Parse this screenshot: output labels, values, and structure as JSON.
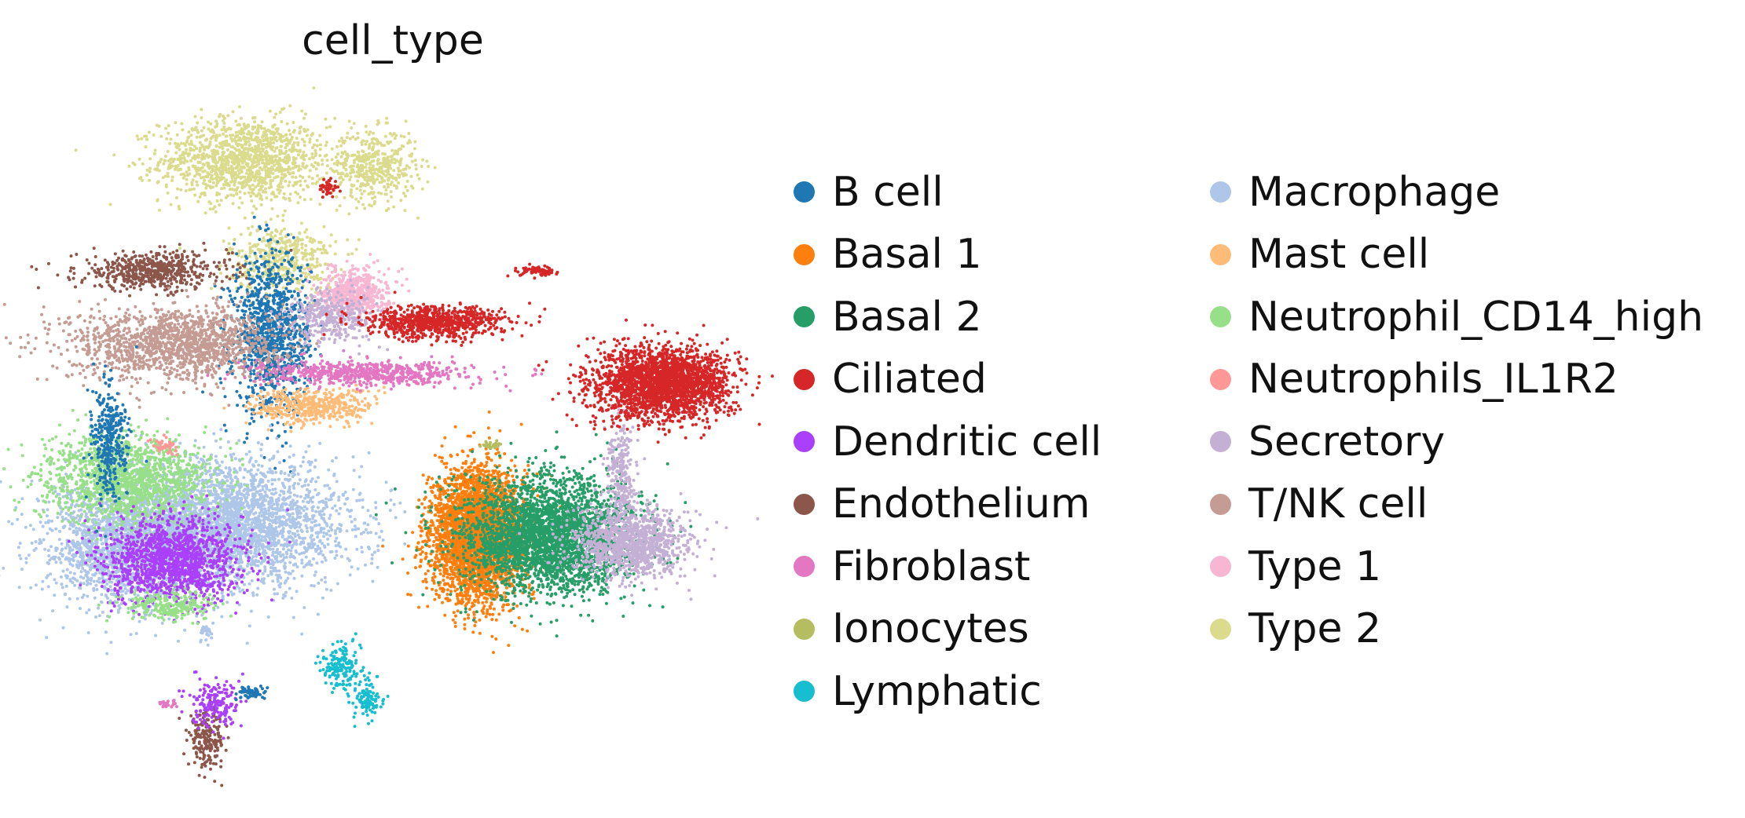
{
  "chart_data": {
    "type": "scatter",
    "title": "cell_type",
    "xlabel": "",
    "ylabel": "",
    "axes_visible": false,
    "legend_position": "right",
    "categories": [
      {
        "name": "B cell",
        "color": "#1f77b4"
      },
      {
        "name": "Basal 1",
        "color": "#ff7f0e"
      },
      {
        "name": "Basal 2",
        "color": "#279e68"
      },
      {
        "name": "Ciliated",
        "color": "#d62728"
      },
      {
        "name": "Dendritic cell",
        "color": "#aa40fc"
      },
      {
        "name": "Endothelium",
        "color": "#8c564b"
      },
      {
        "name": "Fibroblast",
        "color": "#e377c2"
      },
      {
        "name": "Ionocytes",
        "color": "#b5bd61"
      },
      {
        "name": "Lymphatic",
        "color": "#17becf"
      },
      {
        "name": "Macrophage",
        "color": "#aec7e8"
      },
      {
        "name": "Mast cell",
        "color": "#ffbb78"
      },
      {
        "name": "Neutrophil_CD14_high",
        "color": "#98df8a"
      },
      {
        "name": "Neutrophils_IL1R2",
        "color": "#ff9896"
      },
      {
        "name": "Secretory",
        "color": "#c5b0d5"
      },
      {
        "name": "T/NK cell",
        "color": "#c49c94"
      },
      {
        "name": "Type 1",
        "color": "#f7b6d2"
      },
      {
        "name": "Type 2",
        "color": "#dbdb8d"
      }
    ],
    "clusters": [
      {
        "cell_type": "Type 2",
        "cx": 3.1,
        "cy": 7.3,
        "sx": 0.55,
        "sy": 0.35,
        "n": 1300
      },
      {
        "cell_type": "Type 2",
        "cx": 4.8,
        "cy": 7.2,
        "sx": 0.28,
        "sy": 0.3,
        "n": 450
      },
      {
        "cell_type": "Type 2",
        "cx": 3.6,
        "cy": 5.65,
        "sx": 0.35,
        "sy": 0.28,
        "n": 450
      },
      {
        "cell_type": "Ciliated",
        "cx": 4.2,
        "cy": 6.85,
        "sx": 0.06,
        "sy": 0.08,
        "n": 40
      },
      {
        "cell_type": "Endothelium",
        "cx": 1.9,
        "cy": 5.45,
        "sx": 0.5,
        "sy": 0.16,
        "n": 550
      },
      {
        "cell_type": "Endothelium",
        "cx": 2.6,
        "cy": -2.35,
        "sx": 0.12,
        "sy": 0.22,
        "n": 200
      },
      {
        "cell_type": "B cell",
        "cx": 3.45,
        "cy": 4.4,
        "sx": 0.25,
        "sy": 0.65,
        "n": 1100
      },
      {
        "cell_type": "T/NK cell",
        "cx": 2.2,
        "cy": 4.25,
        "sx": 0.7,
        "sy": 0.3,
        "n": 1500
      },
      {
        "cell_type": "Mast cell",
        "cx": 4.0,
        "cy": 3.2,
        "sx": 0.4,
        "sy": 0.15,
        "n": 450
      },
      {
        "cell_type": "Fibroblast",
        "cx": 4.7,
        "cy": 3.75,
        "sx": 0.7,
        "sy": 0.1,
        "n": 650
      },
      {
        "cell_type": "Type 1",
        "cx": 4.55,
        "cy": 5.1,
        "sx": 0.22,
        "sy": 0.2,
        "n": 550
      },
      {
        "cell_type": "Secretory",
        "cx": 4.25,
        "cy": 4.7,
        "sx": 0.3,
        "sy": 0.22,
        "n": 350
      },
      {
        "cell_type": "Ciliated",
        "cx": 5.6,
        "cy": 4.6,
        "sx": 0.45,
        "sy": 0.13,
        "n": 800
      },
      {
        "cell_type": "Ciliated",
        "cx": 7.0,
        "cy": 5.45,
        "sx": 0.15,
        "sy": 0.04,
        "n": 70
      },
      {
        "cell_type": "Macrophage",
        "cx": 2.8,
        "cy": 1.25,
        "sx": 0.8,
        "sy": 0.5,
        "n": 3500
      },
      {
        "cell_type": "Macrophage",
        "cx": 1.5,
        "cy": 0.8,
        "sx": 0.55,
        "sy": 0.5,
        "n": 1500
      },
      {
        "cell_type": "Neutrophil_CD14_high",
        "cx": 1.55,
        "cy": 2.0,
        "sx": 0.55,
        "sy": 0.35,
        "n": 1500
      },
      {
        "cell_type": "Dendritic cell",
        "cx": 2.15,
        "cy": 0.65,
        "sx": 0.45,
        "sy": 0.35,
        "n": 1400
      },
      {
        "cell_type": "B cell",
        "cx": 1.3,
        "cy": 2.6,
        "sx": 0.12,
        "sy": 0.5,
        "n": 350
      },
      {
        "cell_type": "Neutrophil_CD14_high",
        "cx": 2.1,
        "cy": -0.1,
        "sx": 0.3,
        "sy": 0.12,
        "n": 250
      },
      {
        "cell_type": "Neutrophils_IL1R2",
        "cx": 2.05,
        "cy": 2.55,
        "sx": 0.08,
        "sy": 0.08,
        "n": 40
      },
      {
        "cell_type": "Lymphatic",
        "cx": 4.35,
        "cy": -1.15,
        "sx": 0.12,
        "sy": 0.2,
        "n": 160
      },
      {
        "cell_type": "Lymphatic",
        "cx": 4.7,
        "cy": -1.65,
        "sx": 0.1,
        "sy": 0.2,
        "n": 110
      },
      {
        "cell_type": "Dendritic cell",
        "cx": 2.7,
        "cy": -1.75,
        "sx": 0.15,
        "sy": 0.2,
        "n": 180
      },
      {
        "cell_type": "B cell",
        "cx": 3.2,
        "cy": -1.55,
        "sx": 0.1,
        "sy": 0.05,
        "n": 60
      },
      {
        "cell_type": "Fibroblast",
        "cx": 2.1,
        "cy": -1.75,
        "sx": 0.08,
        "sy": 0.03,
        "n": 25
      },
      {
        "cell_type": "Basal 1",
        "cx": 6.15,
        "cy": 1.05,
        "sx": 0.3,
        "sy": 0.55,
        "n": 3500
      },
      {
        "cell_type": "Basal 2",
        "cx": 7.1,
        "cy": 1.05,
        "sx": 0.55,
        "sy": 0.48,
        "n": 3200
      },
      {
        "cell_type": "Secretory",
        "cx": 8.2,
        "cy": 0.9,
        "sx": 0.38,
        "sy": 0.28,
        "n": 1100
      },
      {
        "cell_type": "Secretory",
        "cx": 8.05,
        "cy": 2.1,
        "sx": 0.1,
        "sy": 0.45,
        "n": 250
      },
      {
        "cell_type": "Ciliated",
        "cx": 8.6,
        "cy": 3.6,
        "sx": 0.45,
        "sy": 0.3,
        "n": 2400
      },
      {
        "cell_type": "Ionocytes",
        "cx": 6.35,
        "cy": 2.55,
        "sx": 0.1,
        "sy": 0.03,
        "n": 30
      },
      {
        "cell_type": "Macrophage",
        "cx": 2.6,
        "cy": -0.55,
        "sx": 0.05,
        "sy": 0.08,
        "n": 30
      }
    ]
  }
}
